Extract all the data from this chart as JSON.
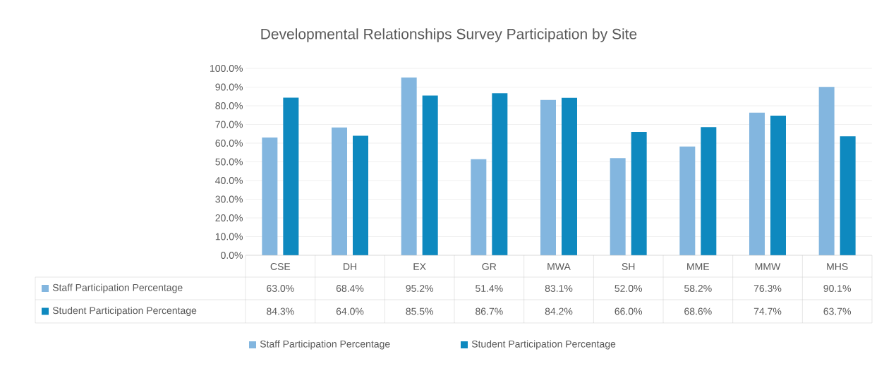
{
  "chart_data": {
    "type": "bar",
    "title": "Developmental Relationships Survey Participation by Site",
    "categories": [
      "CSE",
      "DH",
      "EX",
      "GR",
      "MWA",
      "SH",
      "MME",
      "MMW",
      "MHS"
    ],
    "series": [
      {
        "name": "Staff Participation Percentage",
        "color": "#83b6df",
        "values": [
          63.0,
          68.4,
          95.2,
          51.4,
          83.1,
          52.0,
          58.2,
          76.3,
          90.1
        ],
        "value_labels": [
          "63.0%",
          "68.4%",
          "95.2%",
          "51.4%",
          "83.1%",
          "52.0%",
          "58.2%",
          "76.3%",
          "90.1%"
        ]
      },
      {
        "name": "Student Participation Percentage",
        "color": "#0e89bf",
        "values": [
          84.3,
          64.0,
          85.5,
          86.7,
          84.2,
          66.0,
          68.6,
          74.7,
          63.7
        ],
        "value_labels": [
          "84.3%",
          "64.0%",
          "85.5%",
          "86.7%",
          "84.2%",
          "66.0%",
          "68.6%",
          "74.7%",
          "63.7%"
        ]
      }
    ],
    "ylim": [
      0,
      100
    ],
    "yticks": [
      {
        "value": 0,
        "label": "0.0%"
      },
      {
        "value": 10,
        "label": "10.0%"
      },
      {
        "value": 20,
        "label": "20.0%"
      },
      {
        "value": 30,
        "label": "30.0%"
      },
      {
        "value": 40,
        "label": "40.0%"
      },
      {
        "value": 50,
        "label": "50.0%"
      },
      {
        "value": 60,
        "label": "60.0%"
      },
      {
        "value": 70,
        "label": "70.0%"
      },
      {
        "value": 80,
        "label": "80.0%"
      },
      {
        "value": 90,
        "label": "90.0%"
      },
      {
        "value": 100,
        "label": "100.0%"
      }
    ],
    "grid": "y",
    "legend": "bottom"
  }
}
